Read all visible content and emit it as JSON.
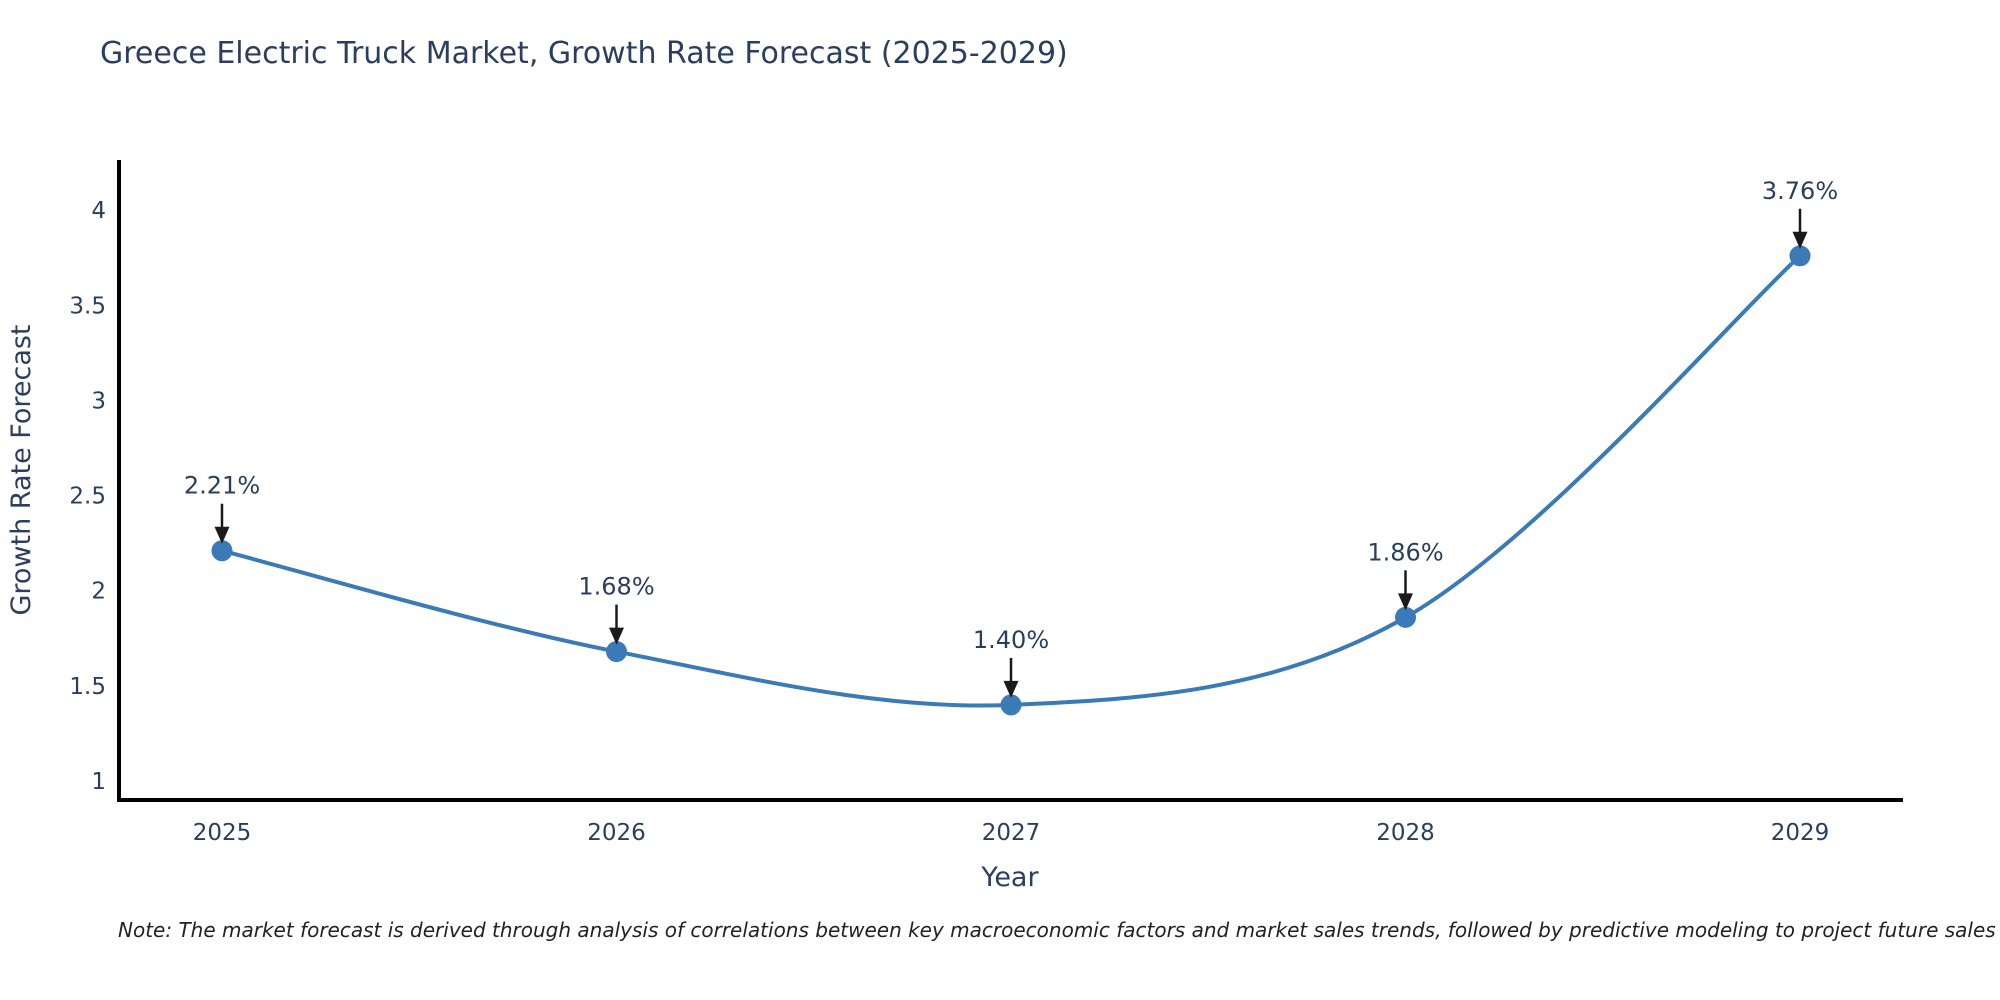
{
  "chart_data": {
    "type": "line",
    "curve": "spline",
    "title": "Greece Electric Truck Market, Growth Rate Forecast (2025-2029)",
    "xlabel": "Year",
    "ylabel": "Growth Rate Forecast",
    "categories": [
      "2025",
      "2026",
      "2027",
      "2028",
      "2029"
    ],
    "values": [
      2.21,
      1.68,
      1.4,
      1.86,
      3.76
    ],
    "point_labels": [
      "2.21%",
      "1.68%",
      "1.40%",
      "1.86%",
      "3.76%"
    ],
    "ytick_values": [
      1,
      1.5,
      2,
      2.5,
      3,
      3.5,
      4
    ],
    "ytick_labels": [
      "1",
      "1.5",
      "2",
      "2.5",
      "3",
      "3.5",
      "4"
    ],
    "ylim": [
      0.9,
      4.26
    ],
    "grid": false,
    "legend": "none",
    "line_color": "#3a7ab7",
    "marker_color": "#3a7ab7",
    "axis_color": "#000000",
    "text_color": "#2a3f5f",
    "annotation_arrow_color": "#1a1a1a"
  },
  "note": "Note: The market forecast is derived through analysis of correlations between key macroeconomic factors and market sales trends, followed by predictive modeling to project future sales"
}
